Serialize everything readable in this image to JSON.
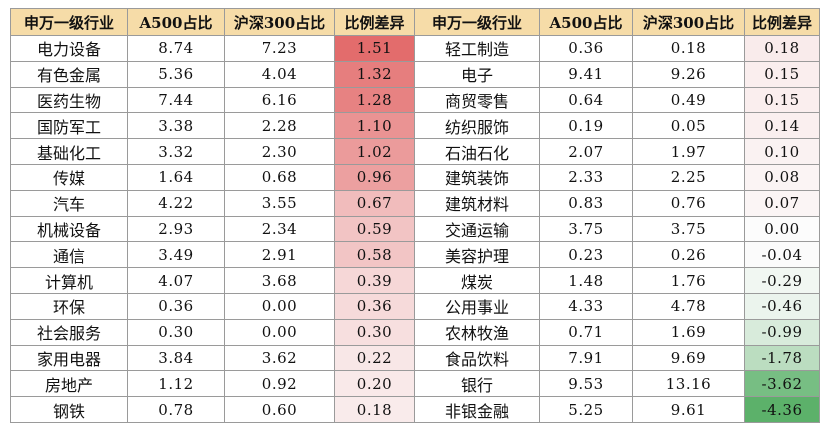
{
  "table": {
    "headers": [
      "申万一级行业",
      "A500占比",
      "沪深300占比",
      "比例差异",
      "申万一级行业",
      "A500占比",
      "沪深300占比",
      "比例差异"
    ],
    "header_color": "#f6dca8",
    "positive_diff_color": "#e36c6c",
    "negative_diff_color": "#5cb16a",
    "rows": [
      [
        [
          "电力设备",
          "8.74",
          "7.23",
          "1.51"
        ],
        [
          "轻工制造",
          "0.36",
          "0.18",
          "0.18"
        ]
      ],
      [
        [
          "有色金属",
          "5.36",
          "4.04",
          "1.32"
        ],
        [
          "电子",
          "9.41",
          "9.26",
          "0.15"
        ]
      ],
      [
        [
          "医药生物",
          "7.44",
          "6.16",
          "1.28"
        ],
        [
          "商贸零售",
          "0.64",
          "0.49",
          "0.15"
        ]
      ],
      [
        [
          "国防军工",
          "3.38",
          "2.28",
          "1.10"
        ],
        [
          "纺织服饰",
          "0.19",
          "0.05",
          "0.14"
        ]
      ],
      [
        [
          "基础化工",
          "3.32",
          "2.30",
          "1.02"
        ],
        [
          "石油石化",
          "2.07",
          "1.97",
          "0.10"
        ]
      ],
      [
        [
          "传媒",
          "1.64",
          "0.68",
          "0.96"
        ],
        [
          "建筑装饰",
          "2.33",
          "2.25",
          "0.08"
        ]
      ],
      [
        [
          "汽车",
          "4.22",
          "3.55",
          "0.67"
        ],
        [
          "建筑材料",
          "0.83",
          "0.76",
          "0.07"
        ]
      ],
      [
        [
          "机械设备",
          "2.93",
          "2.34",
          "0.59"
        ],
        [
          "交通运输",
          "3.75",
          "3.75",
          "0.00"
        ]
      ],
      [
        [
          "通信",
          "3.49",
          "2.91",
          "0.58"
        ],
        [
          "美容护理",
          "0.23",
          "0.26",
          "-0.04"
        ]
      ],
      [
        [
          "计算机",
          "4.07",
          "3.68",
          "0.39"
        ],
        [
          "煤炭",
          "1.48",
          "1.76",
          "-0.29"
        ]
      ],
      [
        [
          "环保",
          "0.36",
          "0.00",
          "0.36"
        ],
        [
          "公用事业",
          "4.33",
          "4.78",
          "-0.46"
        ]
      ],
      [
        [
          "社会服务",
          "0.30",
          "0.00",
          "0.30"
        ],
        [
          "农林牧渔",
          "0.71",
          "1.69",
          "-0.99"
        ]
      ],
      [
        [
          "家用电器",
          "3.84",
          "3.62",
          "0.22"
        ],
        [
          "食品饮料",
          "7.91",
          "9.69",
          "-1.78"
        ]
      ],
      [
        [
          "房地产",
          "1.12",
          "0.92",
          "0.20"
        ],
        [
          "银行",
          "9.53",
          "13.16",
          "-3.62"
        ]
      ],
      [
        [
          "钢铁",
          "0.78",
          "0.60",
          "0.18"
        ],
        [
          "非银金融",
          "5.25",
          "9.61",
          "-4.36"
        ]
      ]
    ]
  }
}
